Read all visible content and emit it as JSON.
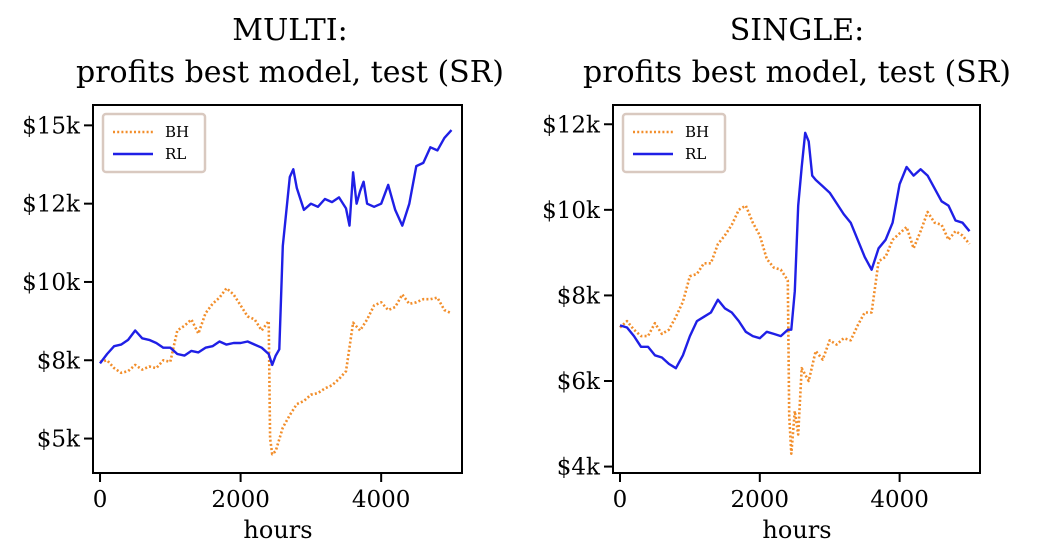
{
  "colors": {
    "bh": "#f28e2b",
    "rl": "#1f1fe6",
    "legend_border": "#d9c9c0"
  },
  "chart_data": [
    {
      "type": "line",
      "title": [
        "MULTI:",
        "profits best model, test (SR)"
      ],
      "xlabel": "hours",
      "ylabel": "",
      "xlim": [
        -100,
        5150
      ],
      "ylim": [
        3900,
        15650
      ],
      "xticks": [
        0,
        2000,
        4000
      ],
      "xtick_labels": [
        "0",
        "2000",
        "4000"
      ],
      "yticks": [
        5000,
        7500,
        10000,
        12500,
        15000
      ],
      "ytick_labels": [
        "$5k",
        "$8k",
        "$10k",
        "$12k",
        "$15k"
      ],
      "legend": {
        "position": "top-left"
      },
      "series": [
        {
          "name": "BH",
          "style": "dotted",
          "color_key": "bh",
          "points": [
            [
              0,
              7450
            ],
            [
              100,
              7500
            ],
            [
              200,
              7250
            ],
            [
              300,
              7100
            ],
            [
              400,
              7150
            ],
            [
              500,
              7350
            ],
            [
              600,
              7200
            ],
            [
              700,
              7300
            ],
            [
              800,
              7250
            ],
            [
              900,
              7500
            ],
            [
              1000,
              7450
            ],
            [
              1100,
              8450
            ],
            [
              1200,
              8600
            ],
            [
              1300,
              8800
            ],
            [
              1400,
              8350
            ],
            [
              1500,
              9000
            ],
            [
              1600,
              9300
            ],
            [
              1700,
              9500
            ],
            [
              1800,
              9800
            ],
            [
              1900,
              9600
            ],
            [
              2000,
              9250
            ],
            [
              2100,
              8900
            ],
            [
              2200,
              8800
            ],
            [
              2300,
              8450
            ],
            [
              2400,
              8750
            ],
            [
              2420,
              5000
            ],
            [
              2450,
              4500
            ],
            [
              2500,
              4600
            ],
            [
              2600,
              5350
            ],
            [
              2700,
              5750
            ],
            [
              2800,
              6100
            ],
            [
              2900,
              6200
            ],
            [
              3000,
              6400
            ],
            [
              3100,
              6450
            ],
            [
              3200,
              6600
            ],
            [
              3300,
              6700
            ],
            [
              3400,
              6900
            ],
            [
              3500,
              7150
            ],
            [
              3600,
              8700
            ],
            [
              3700,
              8450
            ],
            [
              3800,
              8800
            ],
            [
              3900,
              9250
            ],
            [
              4000,
              9350
            ],
            [
              4100,
              9100
            ],
            [
              4200,
              9200
            ],
            [
              4300,
              9600
            ],
            [
              4400,
              9300
            ],
            [
              4500,
              9350
            ],
            [
              4600,
              9450
            ],
            [
              4700,
              9450
            ],
            [
              4800,
              9500
            ],
            [
              4900,
              9100
            ],
            [
              5000,
              9000
            ]
          ]
        },
        {
          "name": "RL",
          "style": "solid",
          "color_key": "rl",
          "points": [
            [
              0,
              7400
            ],
            [
              100,
              7700
            ],
            [
              200,
              7950
            ],
            [
              300,
              8000
            ],
            [
              400,
              8150
            ],
            [
              500,
              8450
            ],
            [
              600,
              8200
            ],
            [
              700,
              8150
            ],
            [
              800,
              8050
            ],
            [
              900,
              7900
            ],
            [
              1000,
              7900
            ],
            [
              1100,
              7700
            ],
            [
              1200,
              7650
            ],
            [
              1300,
              7800
            ],
            [
              1400,
              7750
            ],
            [
              1500,
              7900
            ],
            [
              1600,
              7950
            ],
            [
              1700,
              8100
            ],
            [
              1800,
              8000
            ],
            [
              1900,
              8050
            ],
            [
              2000,
              8050
            ],
            [
              2100,
              8100
            ],
            [
              2200,
              8000
            ],
            [
              2300,
              7900
            ],
            [
              2400,
              7700
            ],
            [
              2450,
              7350
            ],
            [
              2500,
              7650
            ],
            [
              2550,
              7850
            ],
            [
              2600,
              11150
            ],
            [
              2700,
              13350
            ],
            [
              2750,
              13600
            ],
            [
              2800,
              13000
            ],
            [
              2900,
              12300
            ],
            [
              3000,
              12500
            ],
            [
              3100,
              12400
            ],
            [
              3200,
              12650
            ],
            [
              3300,
              12550
            ],
            [
              3400,
              12700
            ],
            [
              3500,
              12350
            ],
            [
              3550,
              11800
            ],
            [
              3600,
              13500
            ],
            [
              3650,
              12500
            ],
            [
              3700,
              12900
            ],
            [
              3750,
              13200
            ],
            [
              3800,
              12500
            ],
            [
              3900,
              12400
            ],
            [
              4000,
              12500
            ],
            [
              4100,
              13100
            ],
            [
              4200,
              12300
            ],
            [
              4300,
              11800
            ],
            [
              4400,
              12500
            ],
            [
              4500,
              13700
            ],
            [
              4600,
              13800
            ],
            [
              4700,
              14300
            ],
            [
              4800,
              14200
            ],
            [
              4900,
              14600
            ],
            [
              5000,
              14850
            ]
          ]
        }
      ]
    },
    {
      "type": "line",
      "title": [
        "SINGLE:",
        "profits best model, test (SR)"
      ],
      "xlabel": "hours",
      "ylabel": "",
      "xlim": [
        -100,
        5150
      ],
      "ylim": [
        3850,
        12450
      ],
      "xticks": [
        0,
        2000,
        4000
      ],
      "xtick_labels": [
        "0",
        "2000",
        "4000"
      ],
      "yticks": [
        4000,
        6000,
        8000,
        10000,
        12000
      ],
      "ytick_labels": [
        "$4k",
        "$6k",
        "$8k",
        "$10k",
        "$12k"
      ],
      "legend": {
        "position": "top-left"
      },
      "series": [
        {
          "name": "BH",
          "style": "dotted",
          "color_key": "bh",
          "points": [
            [
              0,
              7250
            ],
            [
              100,
              7400
            ],
            [
              200,
              7200
            ],
            [
              300,
              7050
            ],
            [
              400,
              7050
            ],
            [
              500,
              7350
            ],
            [
              600,
              7100
            ],
            [
              700,
              7200
            ],
            [
              800,
              7500
            ],
            [
              900,
              7850
            ],
            [
              1000,
              8450
            ],
            [
              1100,
              8500
            ],
            [
              1200,
              8750
            ],
            [
              1300,
              8750
            ],
            [
              1400,
              9200
            ],
            [
              1500,
              9400
            ],
            [
              1600,
              9650
            ],
            [
              1700,
              10000
            ],
            [
              1800,
              10100
            ],
            [
              1900,
              9700
            ],
            [
              2000,
              9400
            ],
            [
              2100,
              8850
            ],
            [
              2200,
              8650
            ],
            [
              2300,
              8600
            ],
            [
              2400,
              8350
            ],
            [
              2420,
              5200
            ],
            [
              2450,
              4300
            ],
            [
              2500,
              5300
            ],
            [
              2550,
              4750
            ],
            [
              2600,
              6300
            ],
            [
              2700,
              6000
            ],
            [
              2800,
              6700
            ],
            [
              2900,
              6500
            ],
            [
              3000,
              6950
            ],
            [
              3100,
              6850
            ],
            [
              3200,
              7000
            ],
            [
              3300,
              6950
            ],
            [
              3400,
              7300
            ],
            [
              3500,
              7600
            ],
            [
              3600,
              7600
            ],
            [
              3700,
              8800
            ],
            [
              3800,
              8900
            ],
            [
              3900,
              9300
            ],
            [
              4000,
              9450
            ],
            [
              4100,
              9600
            ],
            [
              4200,
              9100
            ],
            [
              4300,
              9500
            ],
            [
              4400,
              9950
            ],
            [
              4500,
              9700
            ],
            [
              4600,
              9650
            ],
            [
              4700,
              9300
            ],
            [
              4800,
              9500
            ],
            [
              4900,
              9400
            ],
            [
              5000,
              9200
            ]
          ]
        },
        {
          "name": "RL",
          "style": "solid",
          "color_key": "rl",
          "points": [
            [
              0,
              7300
            ],
            [
              100,
              7250
            ],
            [
              200,
              7050
            ],
            [
              300,
              6800
            ],
            [
              400,
              6800
            ],
            [
              500,
              6600
            ],
            [
              600,
              6550
            ],
            [
              700,
              6400
            ],
            [
              800,
              6300
            ],
            [
              900,
              6600
            ],
            [
              1000,
              7050
            ],
            [
              1100,
              7400
            ],
            [
              1200,
              7500
            ],
            [
              1300,
              7600
            ],
            [
              1400,
              7900
            ],
            [
              1500,
              7700
            ],
            [
              1600,
              7600
            ],
            [
              1700,
              7400
            ],
            [
              1800,
              7150
            ],
            [
              1900,
              7050
            ],
            [
              2000,
              7000
            ],
            [
              2100,
              7150
            ],
            [
              2200,
              7100
            ],
            [
              2300,
              7050
            ],
            [
              2400,
              7200
            ],
            [
              2450,
              7200
            ],
            [
              2500,
              8100
            ],
            [
              2550,
              10100
            ],
            [
              2600,
              11000
            ],
            [
              2650,
              11800
            ],
            [
              2700,
              11600
            ],
            [
              2750,
              10800
            ],
            [
              2800,
              10700
            ],
            [
              2900,
              10550
            ],
            [
              3000,
              10400
            ],
            [
              3100,
              10150
            ],
            [
              3200,
              9900
            ],
            [
              3300,
              9700
            ],
            [
              3400,
              9300
            ],
            [
              3500,
              8900
            ],
            [
              3600,
              8600
            ],
            [
              3700,
              9100
            ],
            [
              3800,
              9300
            ],
            [
              3900,
              9700
            ],
            [
              4000,
              10600
            ],
            [
              4100,
              11000
            ],
            [
              4200,
              10800
            ],
            [
              4300,
              10950
            ],
            [
              4400,
              10800
            ],
            [
              4500,
              10500
            ],
            [
              4600,
              10200
            ],
            [
              4700,
              10100
            ],
            [
              4800,
              9750
            ],
            [
              4900,
              9700
            ],
            [
              5000,
              9500
            ]
          ]
        }
      ]
    }
  ]
}
